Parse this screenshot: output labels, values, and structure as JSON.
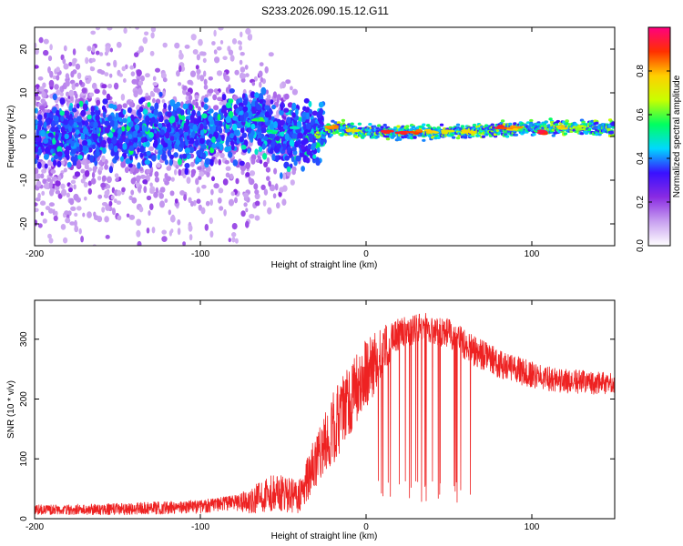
{
  "title": "S233.2026.090.15.12.G11",
  "chart_data": [
    {
      "type": "heatmap",
      "xlabel": "Height of straight line (km)",
      "ylabel": "Frequency (Hz)",
      "xlim": [
        -200,
        150
      ],
      "ylim": [
        -25,
        25
      ],
      "xticks": [
        -200,
        -100,
        0,
        100
      ],
      "yticks": [
        -20,
        -10,
        0,
        10,
        20
      ],
      "colorbar": {
        "label": "Normalized spectral amplitude",
        "range": [
          0,
          1
        ],
        "ticks": [
          "0.0",
          "0.2",
          "0.4",
          "0.6",
          "0.8"
        ],
        "colors": [
          "#ffffff",
          "#c8a0f0",
          "#8a2be2",
          "#3a10ff",
          "#00d8ff",
          "#00ff60",
          "#c8ff00",
          "#ffd000",
          "#ff3000",
          "#ff0080"
        ]
      },
      "dominant_frequency_track": [
        {
          "x": -200,
          "f": 0
        },
        {
          "x": -100,
          "f": 1
        },
        {
          "x": -65,
          "f": 4
        },
        {
          "x": -55,
          "f": 0
        },
        {
          "x": -30,
          "f": 1
        },
        {
          "x": -20,
          "f": 2
        },
        {
          "x": 0,
          "f": 1
        },
        {
          "x": 50,
          "f": 1
        },
        {
          "x": 100,
          "f": 2
        },
        {
          "x": 150,
          "f": 2
        }
      ]
    },
    {
      "type": "line",
      "xlabel": "Height of straight line (km)",
      "ylabel": "SNR (10 * v/v)",
      "xlim": [
        -200,
        150
      ],
      "ylim": [
        0,
        365
      ],
      "xticks": [
        -200,
        -100,
        0,
        100
      ],
      "yticks": [
        0,
        100,
        200,
        300
      ],
      "series": [
        {
          "color": "#ee2222",
          "trend": [
            {
              "x": -200,
              "y": 15
            },
            {
              "x": -150,
              "y": 16
            },
            {
              "x": -100,
              "y": 20
            },
            {
              "x": -70,
              "y": 30
            },
            {
              "x": -55,
              "y": 45
            },
            {
              "x": -40,
              "y": 35
            },
            {
              "x": -30,
              "y": 100
            },
            {
              "x": -20,
              "y": 150
            },
            {
              "x": -10,
              "y": 200
            },
            {
              "x": 10,
              "y": 280
            },
            {
              "x": 20,
              "y": 310
            },
            {
              "x": 35,
              "y": 320
            },
            {
              "x": 50,
              "y": 310
            },
            {
              "x": 65,
              "y": 280
            },
            {
              "x": 80,
              "y": 260
            },
            {
              "x": 100,
              "y": 240
            },
            {
              "x": 120,
              "y": 230
            },
            {
              "x": 150,
              "y": 225
            }
          ],
          "noise": [
            {
              "x": -200,
              "a": 8
            },
            {
              "x": -80,
              "a": 12
            },
            {
              "x": -60,
              "a": 30
            },
            {
              "x": -40,
              "a": 30
            },
            {
              "x": -20,
              "a": 60
            },
            {
              "x": 0,
              "a": 60
            },
            {
              "x": 20,
              "a": 25
            },
            {
              "x": 70,
              "a": 25
            },
            {
              "x": 150,
              "a": 18
            }
          ],
          "dropouts": {
            "x_range": [
              5,
              63
            ],
            "min_y": 25
          }
        }
      ]
    }
  ]
}
